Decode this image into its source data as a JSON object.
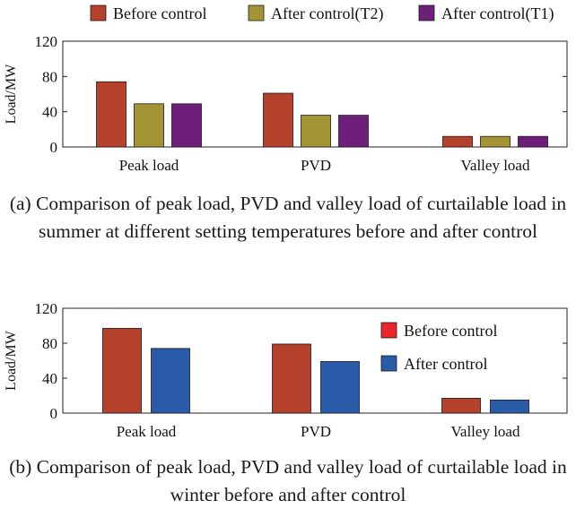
{
  "chart_data": [
    {
      "type": "bar",
      "title": "",
      "xlabel": "",
      "ylabel": "Load/MW",
      "ylim": [
        0,
        120
      ],
      "yticks": [
        0,
        40,
        80,
        120
      ],
      "categories": [
        "Peak load",
        "PVD",
        "Valley load"
      ],
      "series": [
        {
          "name": "Before control",
          "color": "#b5402c",
          "values": [
            74,
            61,
            12
          ]
        },
        {
          "name": "After control(T2)",
          "color": "#a39536",
          "values": [
            49,
            36,
            12
          ]
        },
        {
          "name": "After control(T1)",
          "color": "#6e1f7a",
          "values": [
            49,
            36,
            12
          ]
        }
      ],
      "legend_placement": "top",
      "caption": "(a) Comparison of peak load, PVD and valley load of curtailable load in summer at different setting temperatures before and after control"
    },
    {
      "type": "bar",
      "title": "",
      "xlabel": "",
      "ylabel": "Load/MW",
      "ylim": [
        0,
        120
      ],
      "yticks": [
        0,
        40,
        80,
        120
      ],
      "categories": [
        "Peak load",
        "PVD",
        "Valley load"
      ],
      "series": [
        {
          "name": "Before control",
          "color": "#b5402c",
          "legend_color": "#e8262b",
          "values": [
            97,
            79,
            17
          ]
        },
        {
          "name": "After control",
          "color": "#2a5ba8",
          "legend_color": "#2a5ba8",
          "values": [
            74,
            59,
            15
          ]
        }
      ],
      "legend_placement": "top-right",
      "caption": "(b) Comparison of peak load, PVD and valley load of curtailable load in winter before and after control"
    }
  ]
}
